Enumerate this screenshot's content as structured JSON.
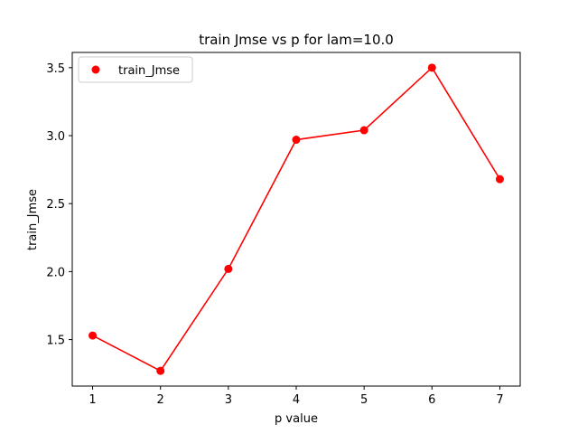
{
  "chart_data": {
    "type": "line",
    "title": "train Jmse vs p for lam=10.0",
    "xlabel": "p value",
    "ylabel": "train_Jmse",
    "x": [
      1,
      2,
      3,
      4,
      5,
      6,
      7
    ],
    "series": [
      {
        "name": "train_Jmse",
        "values": [
          1.53,
          1.27,
          2.02,
          2.97,
          3.04,
          3.5,
          2.68
        ],
        "color": "#ff0000",
        "marker": "circle"
      }
    ],
    "xticks": [
      "1",
      "2",
      "3",
      "4",
      "5",
      "6",
      "7"
    ],
    "yticks": [
      "1.5",
      "2.0",
      "2.5",
      "3.0",
      "3.5"
    ],
    "xlim": [
      0.7,
      7.3
    ],
    "ylim": [
      1.158,
      3.612
    ],
    "grid": false,
    "legend_position": "top-left"
  }
}
